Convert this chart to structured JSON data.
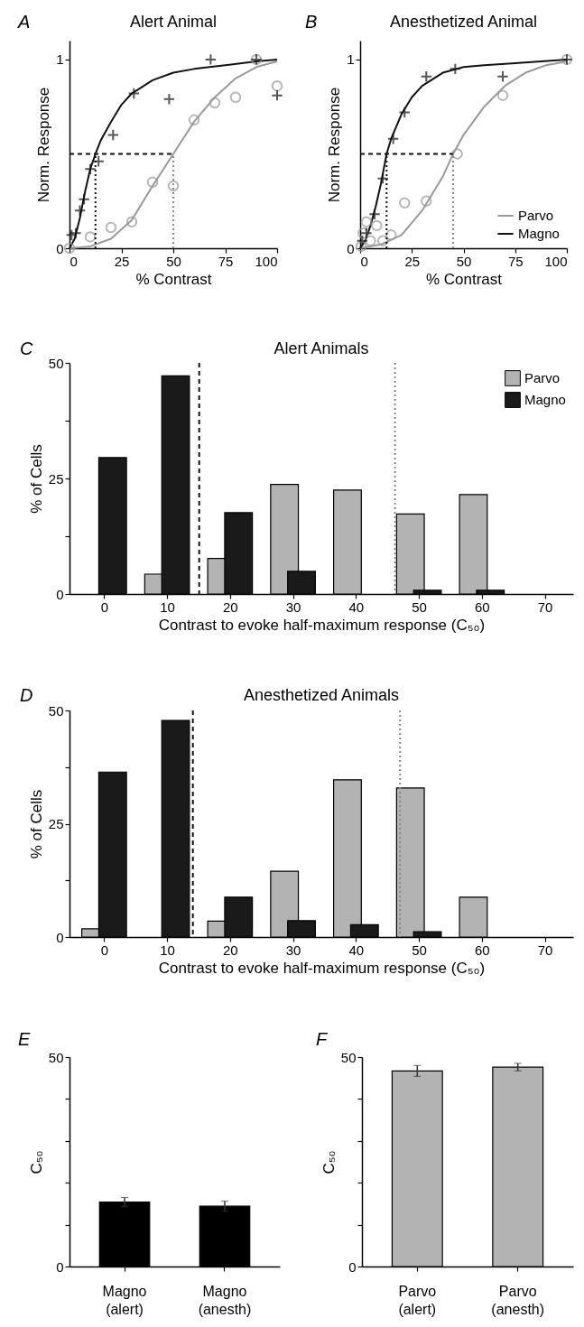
{
  "chart_data": [
    {
      "type": "line",
      "title": "Alert Animal",
      "annotations": [
        "A"
      ],
      "xlabel": "% Contrast",
      "ylabel": "Norm. Response",
      "xlim": [
        0,
        100
      ],
      "xticks": [
        0,
        25,
        50,
        75,
        100
      ],
      "ylim": [
        0,
        1.1
      ],
      "yticks": [
        0,
        1
      ],
      "series": [
        {
          "type": "line",
          "color": "#999999",
          "x": [
            0,
            10,
            20,
            30,
            40,
            50,
            60,
            70,
            80,
            90,
            100
          ],
          "values": [
            0,
            0.01,
            0.05,
            0.15,
            0.33,
            0.5,
            0.67,
            0.8,
            0.9,
            0.96,
            0.99
          ]
        },
        {
          "type": "line",
          "color": "#111111",
          "x": [
            0,
            2.5,
            5,
            7.5,
            10,
            12.5,
            15,
            20,
            25,
            30,
            40,
            50,
            60,
            75,
            90,
            100
          ],
          "values": [
            0,
            0.05,
            0.16,
            0.3,
            0.42,
            0.5,
            0.57,
            0.67,
            0.76,
            0.82,
            0.89,
            0.93,
            0.95,
            0.97,
            0.99,
            1.0
          ]
        },
        {
          "type": "scatter",
          "marker": "circle",
          "color": "#999999",
          "x": [
            0,
            10,
            20,
            30,
            40,
            50,
            60,
            70,
            80,
            90,
            100
          ],
          "values": [
            0,
            0.06,
            0.11,
            0.14,
            0.35,
            0.33,
            0.68,
            0.77,
            0.8,
            1.0,
            0.86
          ]
        },
        {
          "type": "scatter",
          "marker": "cross",
          "color": "#111111",
          "x": [
            1,
            3,
            5,
            7,
            10,
            14,
            21,
            31,
            48,
            68,
            90,
            100
          ],
          "values": [
            0.07,
            0.08,
            0.2,
            0.26,
            0.42,
            0.46,
            0.6,
            0.82,
            0.79,
            1.0,
            1.0,
            0.81
          ]
        },
        {
          "type": "line",
          "line_style": "dashed",
          "color": "#111111",
          "x": [
            0,
            50
          ],
          "values": [
            0.5,
            0.5
          ]
        },
        {
          "type": "line",
          "line_style": "dotted",
          "color": "#111111",
          "x": [
            12.5,
            12.5
          ],
          "values": [
            0,
            0.5
          ]
        },
        {
          "type": "line",
          "line_style": "dotted",
          "color": "#888888",
          "x": [
            50,
            50
          ],
          "values": [
            0,
            0.5
          ]
        }
      ]
    },
    {
      "type": "line",
      "title": "Anesthetized Animal",
      "annotations": [
        "B"
      ],
      "xlabel": "% Contrast",
      "ylabel": "Norm. Response",
      "xlim": [
        0,
        100
      ],
      "xticks": [
        0,
        25,
        50,
        75,
        100
      ],
      "ylim": [
        0,
        1.1
      ],
      "yticks": [
        0,
        1
      ],
      "legend": "bottom right",
      "series": [
        {
          "type": "line",
          "name": "Parvo",
          "color": "#999999",
          "x": [
            0,
            10,
            20,
            30,
            40,
            45,
            50,
            60,
            70,
            80,
            90,
            100
          ],
          "values": [
            0,
            0.02,
            0.07,
            0.2,
            0.38,
            0.5,
            0.6,
            0.75,
            0.86,
            0.93,
            0.97,
            0.99
          ]
        },
        {
          "type": "line",
          "name": "Magno",
          "color": "#111111",
          "x": [
            0,
            2.5,
            5,
            7.5,
            10,
            12.8,
            15,
            20,
            25,
            30,
            40,
            50,
            60,
            75,
            100
          ],
          "values": [
            0,
            0.04,
            0.12,
            0.22,
            0.34,
            0.5,
            0.58,
            0.71,
            0.8,
            0.86,
            0.93,
            0.96,
            0.97,
            0.98,
            1.0
          ]
        },
        {
          "type": "scatter",
          "marker": "circle",
          "color": "#999999",
          "x": [
            0.5,
            1.5,
            3,
            5,
            8,
            11,
            15,
            21.5,
            32,
            47,
            69,
            100
          ],
          "values": [
            0.01,
            0.08,
            0.14,
            0.04,
            0.12,
            0.04,
            0.07,
            0.24,
            0.25,
            0.5,
            0.81,
            1.0
          ]
        },
        {
          "type": "scatter",
          "marker": "cross",
          "color": "#111111",
          "x": [
            1,
            3,
            7,
            11,
            16,
            21.5,
            32,
            46,
            69,
            100
          ],
          "values": [
            0.04,
            0.08,
            0.18,
            0.37,
            0.58,
            0.72,
            0.91,
            0.95,
            0.91,
            1.0
          ]
        },
        {
          "type": "line",
          "line_style": "dashed",
          "color": "#111111",
          "x": [
            0,
            45
          ],
          "values": [
            0.5,
            0.5
          ]
        },
        {
          "type": "line",
          "line_style": "dotted",
          "color": "#111111",
          "x": [
            12.8,
            12.8
          ],
          "values": [
            0,
            0.5
          ]
        },
        {
          "type": "line",
          "line_style": "dotted",
          "color": "#888888",
          "x": [
            45,
            45
          ],
          "values": [
            0,
            0.5
          ]
        }
      ]
    },
    {
      "type": "bar",
      "title": "Alert Animals",
      "annotations": [
        "C"
      ],
      "xlabel": "Contrast to evoke half-maximum response (C₅₀)",
      "ylabel": "% of Cells",
      "x": [
        0,
        10,
        20,
        30,
        40,
        50,
        60
      ],
      "xlim": [
        -5.5,
        74.5
      ],
      "xticks": [
        0,
        10,
        20,
        30,
        40,
        50,
        60,
        70
      ],
      "ylim": [
        0,
        50
      ],
      "yticks": [
        0,
        {
          "value": 12.5,
          "label": null
        },
        25,
        {
          "value": 37.5,
          "label": null
        },
        50
      ],
      "legend": "top right",
      "series": [
        {
          "name": "Parvo",
          "color": "#b3b3b3",
          "values": [
            null,
            4.3,
            7.7,
            23.7,
            22.5,
            17.3,
            21.5
          ]
        },
        {
          "name": "Magno",
          "color": "#1a1a1a",
          "values": [
            29.5,
            47.2,
            17.6,
            4.9,
            null,
            0.8,
            0.8
          ]
        }
      ],
      "ref_lines": [
        {
          "axis": "x",
          "value": 15.1,
          "line_style": "dashed",
          "color": "#111111"
        },
        {
          "axis": "x",
          "value": 46.2,
          "line_style": "dotted",
          "color": "#888888"
        }
      ]
    },
    {
      "type": "bar",
      "title": "Anesthetized Animals",
      "annotations": [
        "D"
      ],
      "xlabel": "Contrast to evoke half-maximum response (C₅₀)",
      "ylabel": "% of Cells",
      "x": [
        0,
        10,
        20,
        30,
        40,
        50,
        60
      ],
      "xlim": [
        -5.5,
        74.5
      ],
      "xticks": [
        0,
        10,
        20,
        30,
        40,
        50,
        60,
        70
      ],
      "ylim": [
        0,
        50
      ],
      "yticks": [
        0,
        {
          "value": 12.5,
          "label": null
        },
        25,
        {
          "value": 37.5,
          "label": null
        },
        50
      ],
      "series": [
        {
          "color": "#b3b3b3",
          "values": [
            1.8,
            null,
            3.5,
            14.5,
            34.7,
            32.9,
            8.8
          ]
        },
        {
          "color": "#1a1a1a",
          "values": [
            36.4,
            47.8,
            8.8,
            3.6,
            2.7,
            1.2,
            null
          ]
        }
      ],
      "ref_lines": [
        {
          "axis": "x",
          "value": 14.1,
          "line_style": "dashed",
          "color": "#111111"
        },
        {
          "axis": "x",
          "value": 47,
          "line_style": "dotted",
          "color": "#888888"
        }
      ]
    },
    {
      "type": "bar",
      "annotations": [
        "E"
      ],
      "ylabel": "C₅₀",
      "categories": [
        "Magno\n(alert)",
        "Magno\n(anesth)"
      ],
      "values": [
        15.4,
        14.4
      ],
      "errors": [
        1.1,
        1.2
      ],
      "color": "#000000",
      "ylim": [
        0,
        50
      ],
      "yticks": [
        0,
        {
          "value": 10,
          "label": null
        },
        {
          "value": 20,
          "label": null
        },
        {
          "value": 30,
          "label": null
        },
        {
          "value": 40,
          "label": null
        },
        50
      ]
    },
    {
      "type": "bar",
      "annotations": [
        "F"
      ],
      "ylabel": "C₅₀",
      "categories": [
        "Parvo\n(alert)",
        "Parvo\n(anesth)"
      ],
      "values": [
        46.7,
        47.6
      ],
      "errors": [
        1.3,
        0.9
      ],
      "color": "#b3b3b3",
      "ylim": [
        0,
        50
      ],
      "yticks": [
        0,
        {
          "value": 10,
          "label": null
        },
        {
          "value": 20,
          "label": null
        },
        {
          "value": 30,
          "label": null
        },
        {
          "value": 40,
          "label": null
        },
        50
      ]
    }
  ]
}
